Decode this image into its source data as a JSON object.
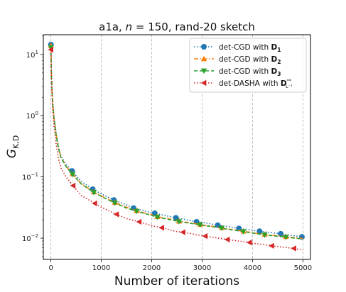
{
  "chart_data": {
    "type": "line",
    "title_parts": [
      "a1a, ",
      "n",
      " = 150, rand-20 sketch"
    ],
    "xlabel": "Number of iterations",
    "ylabel_main": "G",
    "ylabel_sub": "K,D",
    "xscale": "linear",
    "yscale": "log",
    "xlim": [
      -150,
      5150
    ],
    "ylim": [
      0.0045,
      21
    ],
    "xticks": [
      0,
      1000,
      2000,
      3000,
      4000,
      5000
    ],
    "xtick_labels": [
      "0",
      "1000",
      "2000",
      "3000",
      "4000",
      "5000"
    ],
    "yticks": [
      0.01,
      0.1,
      1,
      10
    ],
    "ytick_labels": [
      {
        "base": "10",
        "exp": "−2"
      },
      {
        "base": "10",
        "exp": "−1"
      },
      {
        "base": "10",
        "exp": "0"
      },
      {
        "base": "10",
        "exp": "1"
      }
    ],
    "grid": "x-dashed",
    "legend_position": "top-right",
    "series": [
      {
        "name_prefix": "det-CGD with ",
        "name_bold": "D",
        "name_sub": "1",
        "color": "#1f77b4",
        "linestyle": "dotted",
        "marker": "circle",
        "x": [
          0,
          10,
          30,
          60,
          100,
          150,
          200,
          300,
          420,
          600,
          830,
          1000,
          1250,
          1500,
          1640,
          2000,
          2060,
          2500,
          2480,
          3000,
          2890,
          3310,
          3500,
          3730,
          4000,
          4140,
          4560,
          5000,
          4980
        ],
        "y": [
          14.5,
          5.0,
          2.0,
          1.0,
          0.55,
          0.32,
          0.22,
          0.16,
          0.125,
          0.085,
          0.063,
          0.053,
          0.042,
          0.035,
          0.031,
          0.026,
          0.0255,
          0.0215,
          0.0215,
          0.0182,
          0.0185,
          0.0163,
          0.0155,
          0.0144,
          0.0135,
          0.013,
          0.0118,
          0.0108,
          0.0105
        ],
        "marker_x": [
          0,
          420,
          830,
          1250,
          1640,
          2060,
          2480,
          2890,
          3310,
          3730,
          4140,
          4560,
          4980
        ]
      },
      {
        "name_prefix": "det-CGD with ",
        "name_bold": "D",
        "name_sub": "2",
        "color": "#ff7f0e",
        "linestyle": "dashdot",
        "marker": "triangle-up",
        "x": [
          0,
          10,
          30,
          60,
          100,
          150,
          200,
          300,
          430,
          600,
          850,
          1000,
          1250,
          1500,
          1700,
          2000,
          2110,
          2500,
          2540,
          3000,
          2960,
          3390,
          3500,
          3820,
          4000,
          4240,
          4660,
          5000
        ],
        "y": [
          14.0,
          4.8,
          1.9,
          0.95,
          0.52,
          0.3,
          0.21,
          0.15,
          0.112,
          0.078,
          0.057,
          0.049,
          0.039,
          0.032,
          0.028,
          0.024,
          0.0225,
          0.0195,
          0.019,
          0.0165,
          0.0168,
          0.0148,
          0.0142,
          0.013,
          0.0123,
          0.0115,
          0.0106,
          0.0099
        ],
        "marker_x": [
          0,
          430,
          850,
          1270,
          1700,
          2110,
          2540,
          2960,
          3390,
          3820,
          4240,
          4660
        ]
      },
      {
        "name_prefix": "det-CGD with ",
        "name_bold": "D",
        "name_sub": "3",
        "color": "#2ca02c",
        "linestyle": "dashed",
        "marker": "triangle-down",
        "x": [
          0,
          10,
          30,
          60,
          100,
          150,
          200,
          300,
          430,
          600,
          850,
          1000,
          1250,
          1500,
          1700,
          2000,
          2110,
          2500,
          2540,
          3000,
          2960,
          3390,
          3500,
          3820,
          4000,
          4240,
          4660,
          5000
        ],
        "y": [
          13.0,
          4.6,
          1.85,
          0.93,
          0.5,
          0.29,
          0.205,
          0.148,
          0.11,
          0.077,
          0.056,
          0.048,
          0.038,
          0.031,
          0.0275,
          0.0235,
          0.022,
          0.019,
          0.0187,
          0.0163,
          0.0165,
          0.0146,
          0.014,
          0.0128,
          0.0121,
          0.0113,
          0.0104,
          0.0097
        ],
        "marker_x": [
          0,
          430,
          850,
          1270,
          1700,
          2110,
          2540,
          2960,
          3390,
          3820,
          4240,
          4660
        ]
      },
      {
        "name_prefix": "det-DASHA with ",
        "name_bold": "D",
        "name_sup": "**",
        "name_sub": "L⁻¹",
        "color": "#d62728",
        "linestyle": "dotted",
        "marker": "triangle-left",
        "x": [
          0,
          10,
          30,
          60,
          100,
          150,
          200,
          300,
          440,
          600,
          870,
          1000,
          1300,
          1500,
          1750,
          2000,
          2200,
          2500,
          2620,
          3000,
          3060,
          3500,
          3500,
          3940,
          4000,
          4380,
          4500,
          4820,
          5000
        ],
        "y": [
          12.0,
          4.0,
          1.5,
          0.7,
          0.36,
          0.2,
          0.14,
          0.1,
          0.072,
          0.05,
          0.037,
          0.032,
          0.0245,
          0.021,
          0.0185,
          0.016,
          0.0148,
          0.0128,
          0.0125,
          0.011,
          0.0108,
          0.0095,
          0.0095,
          0.0085,
          0.0083,
          0.0075,
          0.0073,
          0.0068,
          0.0064
        ],
        "marker_x": [
          0,
          440,
          870,
          1300,
          1750,
          2200,
          2620,
          3060,
          3500,
          3940,
          4380,
          4820
        ]
      }
    ]
  }
}
